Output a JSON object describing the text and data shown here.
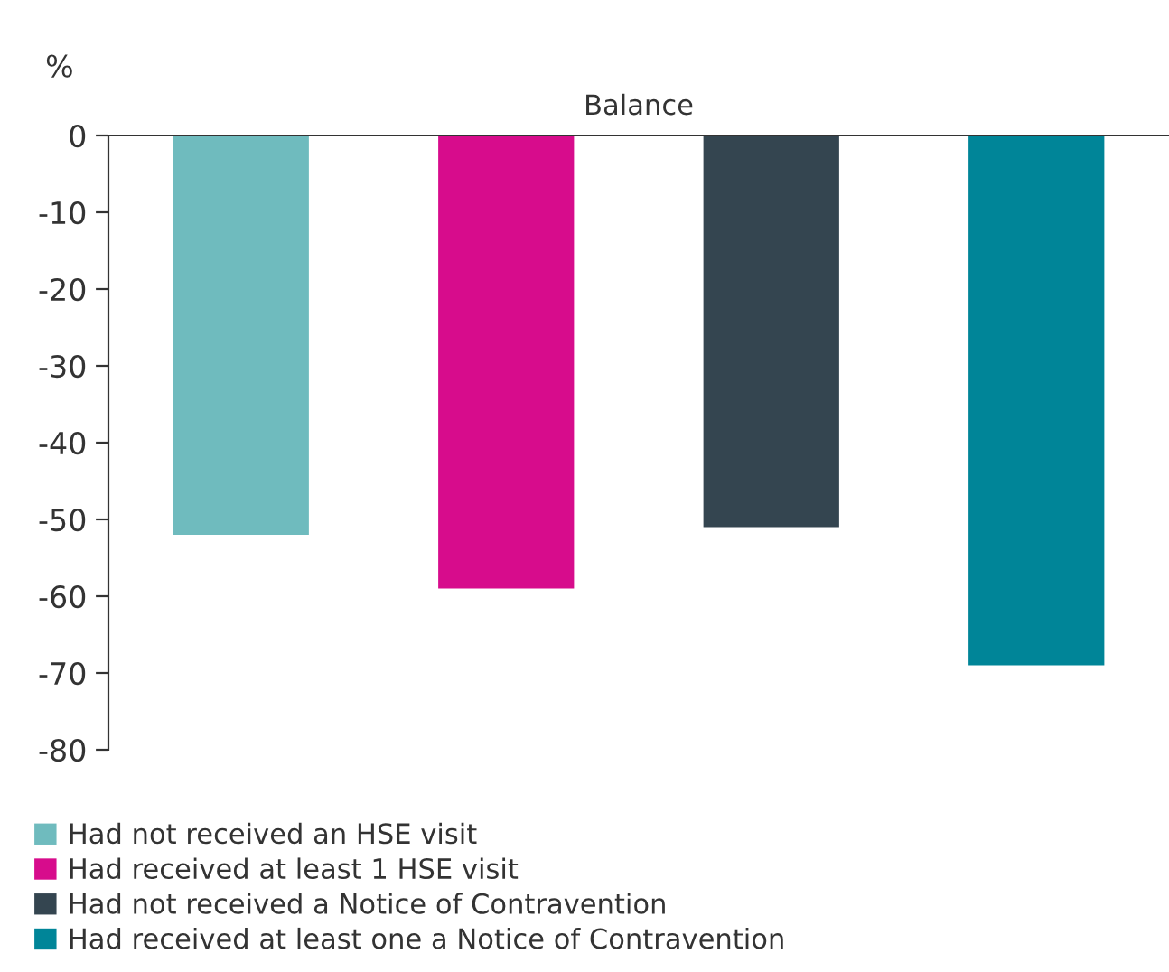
{
  "chart_data": {
    "type": "bar",
    "ylabel": "%",
    "categories": [
      "Balance"
    ],
    "series": [
      {
        "name": "Had not received an HSE visit",
        "color": "#6fbbbe",
        "values": [
          -52
        ]
      },
      {
        "name": "Had received at least 1 HSE visit",
        "color": "#d70c8c",
        "values": [
          -59
        ]
      },
      {
        "name": "Had not received a Notice of Contravention",
        "color": "#344550",
        "values": [
          -51
        ]
      },
      {
        "name": "Had received at least one a Notice of Contravention",
        "color": "#008598",
        "values": [
          -69
        ]
      }
    ],
    "ylim": [
      -80,
      0
    ],
    "yticks": [
      0,
      -10,
      -20,
      -30,
      -40,
      -50,
      -60,
      -70,
      -80
    ],
    "grid": false,
    "legend": "bottom"
  }
}
